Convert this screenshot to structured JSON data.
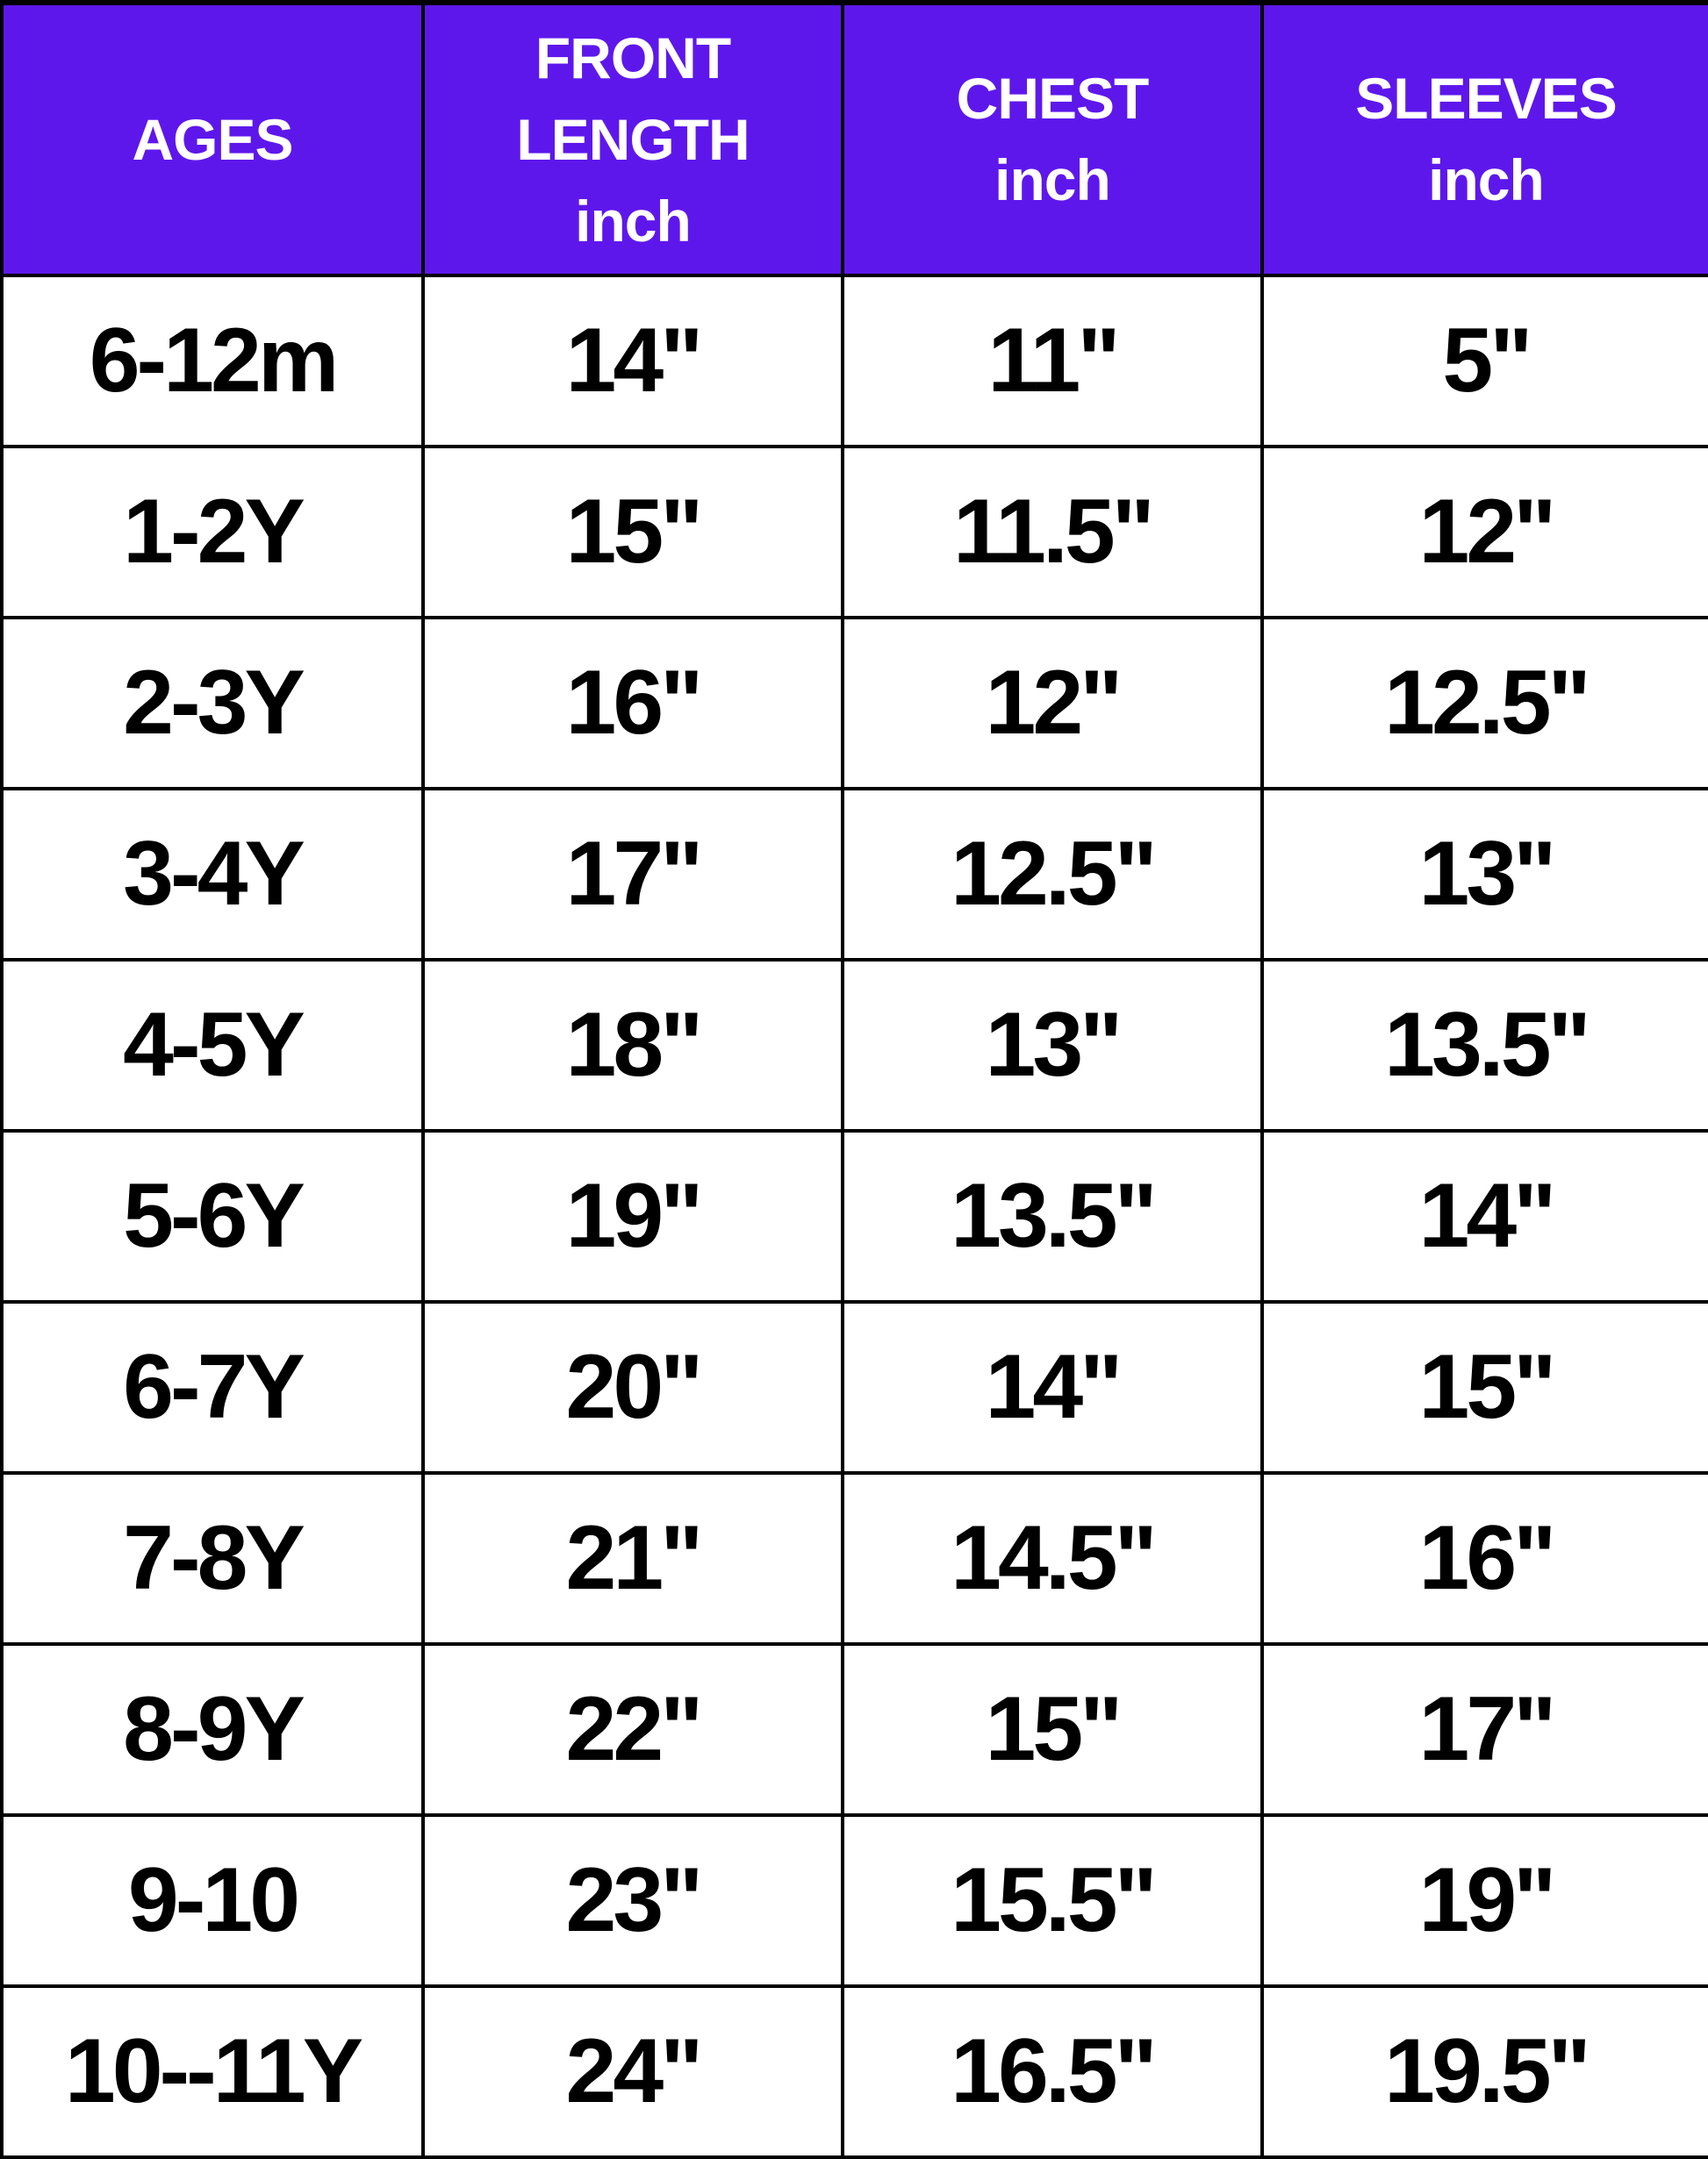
{
  "colors": {
    "header_bg": "#5e17eb",
    "header_text": "#ffffff",
    "border": "#000000"
  },
  "table": {
    "headers": [
      [
        "AGES"
      ],
      [
        "FRONT",
        "LENGTH",
        "inch"
      ],
      [
        "CHEST",
        "inch"
      ],
      [
        "SLEEVES",
        "inch"
      ]
    ],
    "rows": [
      [
        "6-12m",
        "14\"",
        "11\"",
        "5\""
      ],
      [
        "1-2Y",
        "15\"",
        "11.5\"",
        "12\""
      ],
      [
        "2-3Y",
        "16\"",
        "12\"",
        "12.5\""
      ],
      [
        "3-4Y",
        "17\"",
        "12.5\"",
        "13\""
      ],
      [
        "4-5Y",
        "18\"",
        "13\"",
        "13.5\""
      ],
      [
        "5-6Y",
        "19\"",
        "13.5\"",
        "14\""
      ],
      [
        "6-7Y",
        "20\"",
        "14\"",
        "15\""
      ],
      [
        "7-8Y",
        "21\"",
        "14.5\"",
        "16\""
      ],
      [
        "8-9Y",
        "22\"",
        "15\"",
        "17\""
      ],
      [
        "9-10",
        "23\"",
        "15.5\"",
        "19\""
      ],
      [
        "10--11Y",
        "24\"",
        "16.5\"",
        "19.5\""
      ]
    ]
  }
}
